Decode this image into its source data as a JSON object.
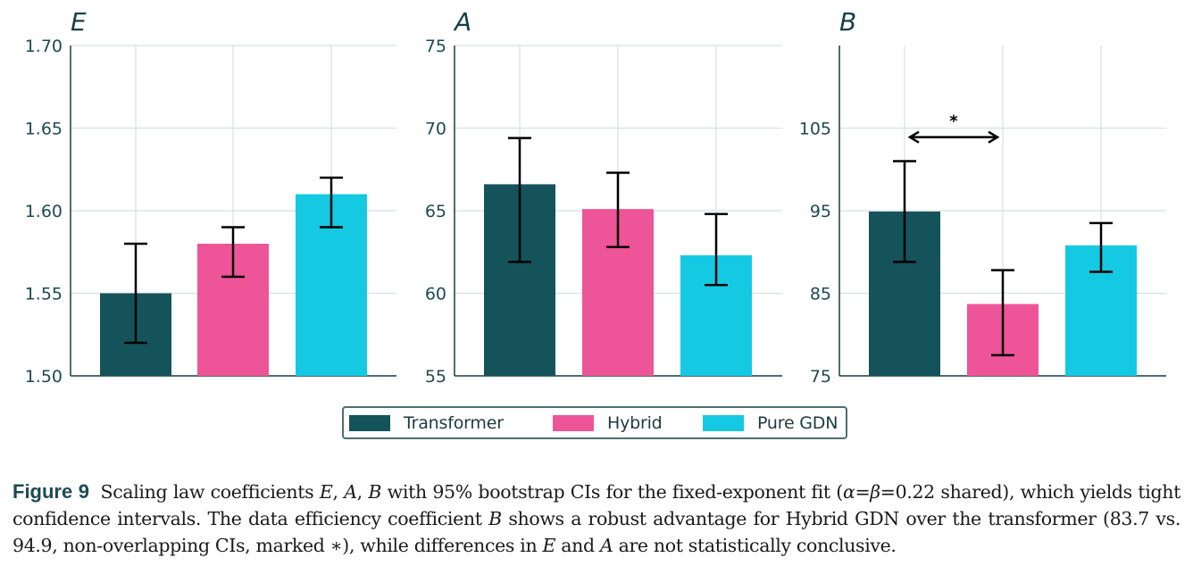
{
  "chart_data": [
    {
      "type": "bar",
      "title": "E",
      "categories": [
        "Transformer",
        "Hybrid",
        "Pure GDN"
      ],
      "values": [
        1.55,
        1.58,
        1.61
      ],
      "ci_low": [
        1.52,
        1.56,
        1.59
      ],
      "ci_high": [
        1.58,
        1.59,
        1.62
      ],
      "ylim": [
        1.5,
        1.7
      ],
      "yticks": [
        1.5,
        1.55,
        1.6,
        1.65,
        1.7
      ],
      "ytick_labels": [
        "1.50",
        "1.55",
        "1.60",
        "1.65",
        "1.70"
      ],
      "xlabel": "",
      "ylabel": "",
      "grid": true
    },
    {
      "type": "bar",
      "title": "A",
      "categories": [
        "Transformer",
        "Hybrid",
        "Pure GDN"
      ],
      "values": [
        66.6,
        65.1,
        62.3
      ],
      "ci_low": [
        61.9,
        62.8,
        60.5
      ],
      "ci_high": [
        69.4,
        67.3,
        64.8
      ],
      "ylim": [
        55,
        75
      ],
      "yticks": [
        55,
        60,
        65,
        70,
        75
      ],
      "ytick_labels": [
        "55",
        "60",
        "65",
        "70",
        "75"
      ],
      "xlabel": "",
      "ylabel": "",
      "grid": true
    },
    {
      "type": "bar",
      "title": "B",
      "categories": [
        "Transformer",
        "Hybrid",
        "Pure GDN"
      ],
      "values": [
        94.9,
        83.7,
        90.8
      ],
      "ci_low": [
        88.8,
        77.5,
        87.6
      ],
      "ci_high": [
        101.0,
        87.8,
        93.5
      ],
      "ylim": [
        75,
        115
      ],
      "yticks": [
        75,
        85,
        95,
        105
      ],
      "ytick_labels": [
        "75",
        "85",
        "95",
        "105"
      ],
      "xlabel": "",
      "ylabel": "",
      "grid": true,
      "annotation": {
        "from": "Transformer",
        "to": "Hybrid",
        "y": 103.9,
        "label": "*"
      }
    }
  ],
  "legend": {
    "placement": "bottom-center",
    "items": [
      {
        "label": "Transformer",
        "color": "#15535a"
      },
      {
        "label": "Hybrid",
        "color": "#ee5498"
      },
      {
        "label": "Pure GDN",
        "color": "#15c9e2"
      }
    ]
  },
  "colors": {
    "axis": "#173f45",
    "grid": "#d8dfe1",
    "errorbar": "#000000",
    "tick_text": "#1d4a52"
  },
  "caption": {
    "figure_label": "Figure 9",
    "segments": [
      {
        "t": " Scaling law coefficients "
      },
      {
        "t": "E",
        "i": true
      },
      {
        "t": ", "
      },
      {
        "t": "A",
        "i": true
      },
      {
        "t": ", "
      },
      {
        "t": "B",
        "i": true
      },
      {
        "t": " with 95% bootstrap CIs for the fixed-exponent fit ("
      },
      {
        "t": "α",
        "i": true
      },
      {
        "t": "="
      },
      {
        "t": "β",
        "i": true
      },
      {
        "t": "=0.22 shared), which yields tight confidence intervals. The data efficiency coefficient "
      },
      {
        "t": "B",
        "i": true
      },
      {
        "t": " shows a robust advantage for Hybrid GDN over the transformer (83.7 vs. 94.9, non-overlapping CIs, marked ∗), while differences in "
      },
      {
        "t": "E",
        "i": true
      },
      {
        "t": " and "
      },
      {
        "t": "A",
        "i": true
      },
      {
        "t": " are not statistically conclusive."
      }
    ]
  }
}
